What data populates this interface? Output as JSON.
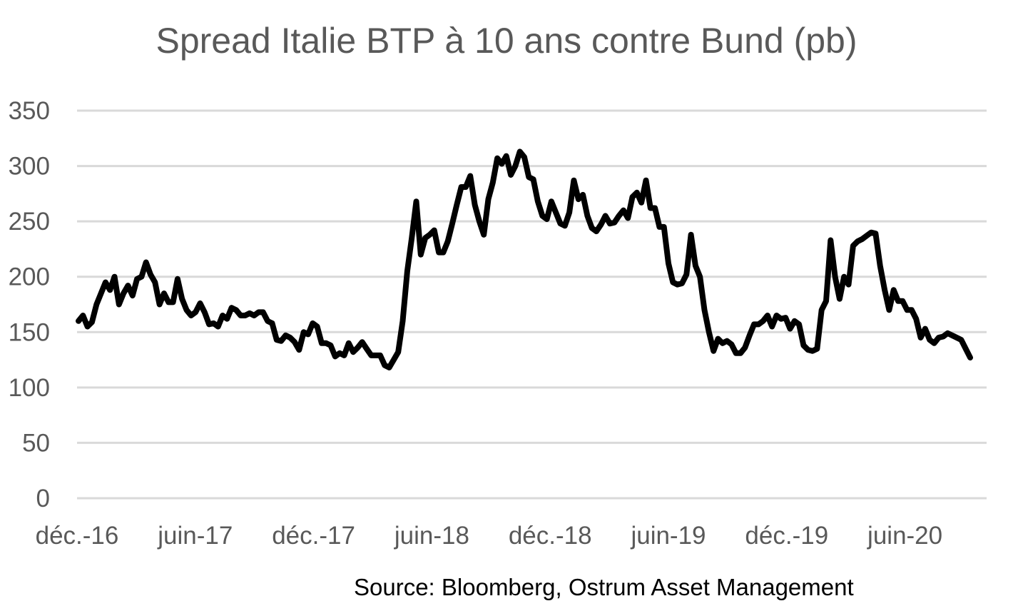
{
  "chart_data": {
    "type": "line",
    "title": "Spread Italie BTP à 10 ans contre Bund (pb)",
    "xlabel": "",
    "ylabel": "",
    "ylim": [
      0,
      350
    ],
    "yticks": [
      0,
      50,
      100,
      150,
      200,
      250,
      300,
      350
    ],
    "x_tick_labels": [
      "déc.-16",
      "juin-17",
      "déc.-17",
      "juin-18",
      "déc.-18",
      "juin-19",
      "déc.-19",
      "juin-20"
    ],
    "grid": true,
    "legend": "none",
    "colors": {
      "line": "#000000",
      "grid": "#d9d9d9",
      "text": "#595959"
    },
    "x_start": "déc.-16",
    "x_step": "1 week",
    "series": [
      {
        "values": [
          160,
          165,
          155,
          159,
          175,
          185,
          195,
          188,
          200,
          175,
          185,
          192,
          183,
          198,
          200,
          213,
          202,
          195,
          175,
          185,
          177,
          177,
          198,
          180,
          170,
          165,
          168,
          176,
          168,
          157,
          158,
          155,
          165,
          162,
          172,
          170,
          165,
          165,
          167,
          165,
          168,
          168,
          160,
          158,
          143,
          142,
          147,
          145,
          141,
          134,
          150,
          148,
          158,
          155,
          140,
          140,
          138,
          128,
          131,
          129,
          140,
          132,
          136,
          141,
          135,
          129,
          129,
          129,
          120,
          118,
          125,
          132,
          160,
          205,
          235,
          268,
          220,
          235,
          238,
          242,
          222,
          222,
          232,
          248,
          265,
          281,
          281,
          291,
          265,
          250,
          238,
          270,
          285,
          307,
          302,
          309,
          292,
          300,
          313,
          308,
          290,
          288,
          268,
          255,
          252,
          268,
          258,
          248,
          246,
          258,
          287,
          270,
          274,
          255,
          244,
          241,
          247,
          255,
          248,
          249,
          255,
          260,
          253,
          272,
          276,
          267,
          287,
          262,
          262,
          245,
          245,
          212,
          195,
          193,
          194,
          202,
          238,
          210,
          200,
          170,
          150,
          133,
          144,
          140,
          142,
          139,
          131,
          131,
          136,
          147,
          157,
          157,
          160,
          165,
          155,
          165,
          162,
          163,
          153,
          160,
          157,
          138,
          134,
          133,
          135,
          170,
          178,
          233,
          200,
          180,
          200,
          193,
          228,
          232,
          234,
          237,
          240,
          239,
          210,
          188,
          170,
          188,
          178,
          178,
          170,
          170,
          162,
          145,
          153,
          143,
          140,
          145,
          146,
          149,
          147,
          145,
          143,
          135,
          127
        ]
      }
    ]
  },
  "source_text": "Source: Bloomberg, Ostrum Asset Management"
}
